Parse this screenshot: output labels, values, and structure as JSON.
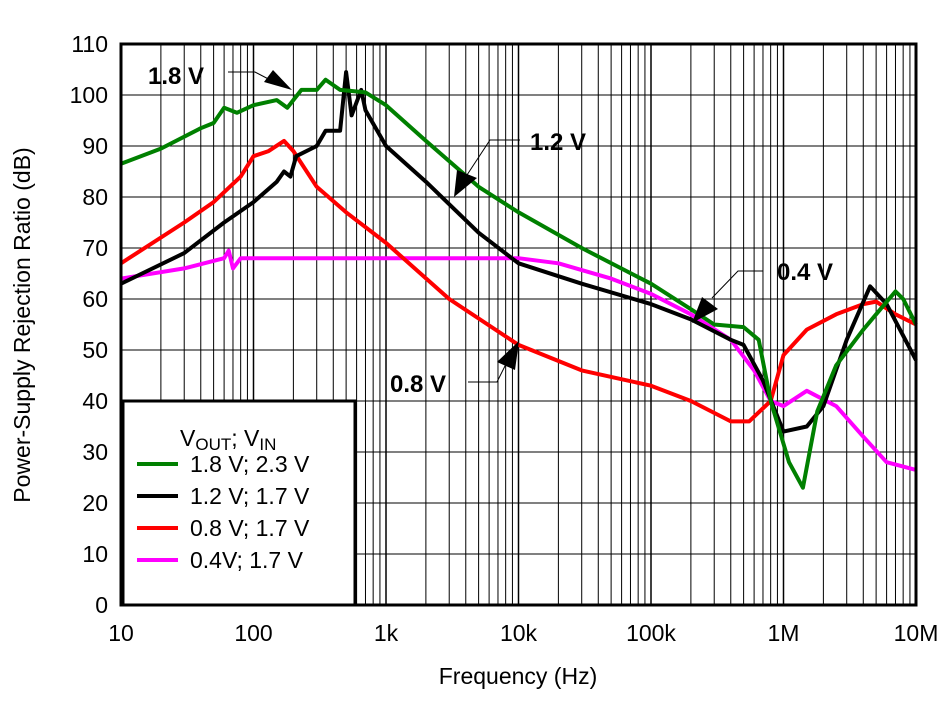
{
  "chart_data": {
    "type": "line",
    "xlabel": "Frequency (Hz)",
    "ylabel": "Power-Supply Rejection Ratio (dB)",
    "xscale": "log",
    "xlim": [
      10,
      10000000
    ],
    "ylim": [
      0,
      110
    ],
    "grid": true,
    "x_ticks": [
      10,
      100,
      1000,
      10000,
      100000,
      1000000,
      10000000
    ],
    "x_tick_labels": [
      "10",
      "100",
      "1k",
      "10k",
      "100k",
      "1M",
      "10M"
    ],
    "y_ticks": [
      0,
      10,
      20,
      30,
      40,
      50,
      60,
      70,
      80,
      90,
      100,
      110
    ],
    "y_tick_labels": [
      "0",
      "10",
      "20",
      "30",
      "40",
      "50",
      "60",
      "70",
      "80",
      "90",
      "100",
      "110"
    ],
    "legend": {
      "placement": "bottom-left",
      "title_parts": [
        "V",
        "OUT",
        "; V",
        "IN"
      ]
    },
    "series": [
      {
        "name": "1.8 V; 2.3 V",
        "color": "#008000",
        "x": [
          10,
          20,
          40,
          50,
          60,
          75,
          100,
          150,
          180,
          230,
          300,
          350,
          450,
          700,
          1000,
          2000,
          5000,
          10000,
          30000,
          100000,
          200000,
          300000,
          500000,
          650000,
          800000,
          1100000,
          1400000,
          1800000,
          2500000,
          4000000,
          5000000,
          7000000,
          8000000,
          10000000
        ],
        "y": [
          86.5,
          89.5,
          93.5,
          94.5,
          97.5,
          96.5,
          98,
          99,
          97.5,
          101,
          101,
          103,
          101,
          100.5,
          98,
          91,
          82,
          77,
          70,
          63,
          58,
          55,
          54.5,
          52,
          40,
          28,
          23,
          38,
          47,
          54,
          57,
          61.5,
          60,
          55
        ]
      },
      {
        "name": "1.2 V; 1.7 V",
        "color": "#000000",
        "x": [
          10,
          30,
          60,
          100,
          150,
          170,
          190,
          210,
          300,
          350,
          450,
          500,
          550,
          650,
          700,
          1000,
          2000,
          5000,
          10000,
          30000,
          100000,
          200000,
          400000,
          500000,
          700000,
          1000000,
          1500000,
          2000000,
          3000000,
          4500000,
          6000000,
          10000000
        ],
        "y": [
          63,
          69,
          75,
          79,
          83,
          85,
          84,
          88,
          90,
          93,
          93,
          104.5,
          96,
          101,
          97,
          90,
          83,
          73,
          67,
          63,
          59,
          56,
          52,
          51,
          44,
          34,
          35,
          39,
          52,
          62.5,
          59,
          48
        ]
      },
      {
        "name": "0.8 V; 1.7 V",
        "color": "#ff0000",
        "x": [
          10,
          30,
          50,
          80,
          100,
          130,
          170,
          200,
          300,
          500,
          1000,
          3000,
          10000,
          30000,
          100000,
          200000,
          400000,
          550000,
          800000,
          1000000,
          1500000,
          2500000,
          4000000,
          5000000,
          7000000,
          10000000
        ],
        "y": [
          67,
          75,
          79,
          84,
          88,
          89,
          91,
          89,
          82,
          77,
          71,
          60,
          51,
          46,
          43,
          40,
          36,
          36,
          40,
          49,
          54,
          57,
          59,
          59.5,
          57,
          55
        ]
      },
      {
        "name": "0.4V; 1.7 V",
        "color": "#ff00ff",
        "x": [
          10,
          30,
          60,
          65,
          70,
          80,
          150,
          1000,
          10000,
          20000,
          50000,
          100000,
          200000,
          400000,
          600000,
          800000,
          1000000,
          1500000,
          2500000,
          4000000,
          6000000,
          10000000
        ],
        "y": [
          64,
          66,
          68,
          69.5,
          66,
          68,
          68,
          68,
          68,
          67,
          64,
          61,
          57,
          52,
          46,
          40,
          39,
          42,
          39,
          33,
          28,
          26.5
        ]
      }
    ],
    "annotations": [
      {
        "text": "1.8 V"
      },
      {
        "text": "1.2 V"
      },
      {
        "text": "0.4 V"
      },
      {
        "text": "0.8 V"
      }
    ]
  }
}
